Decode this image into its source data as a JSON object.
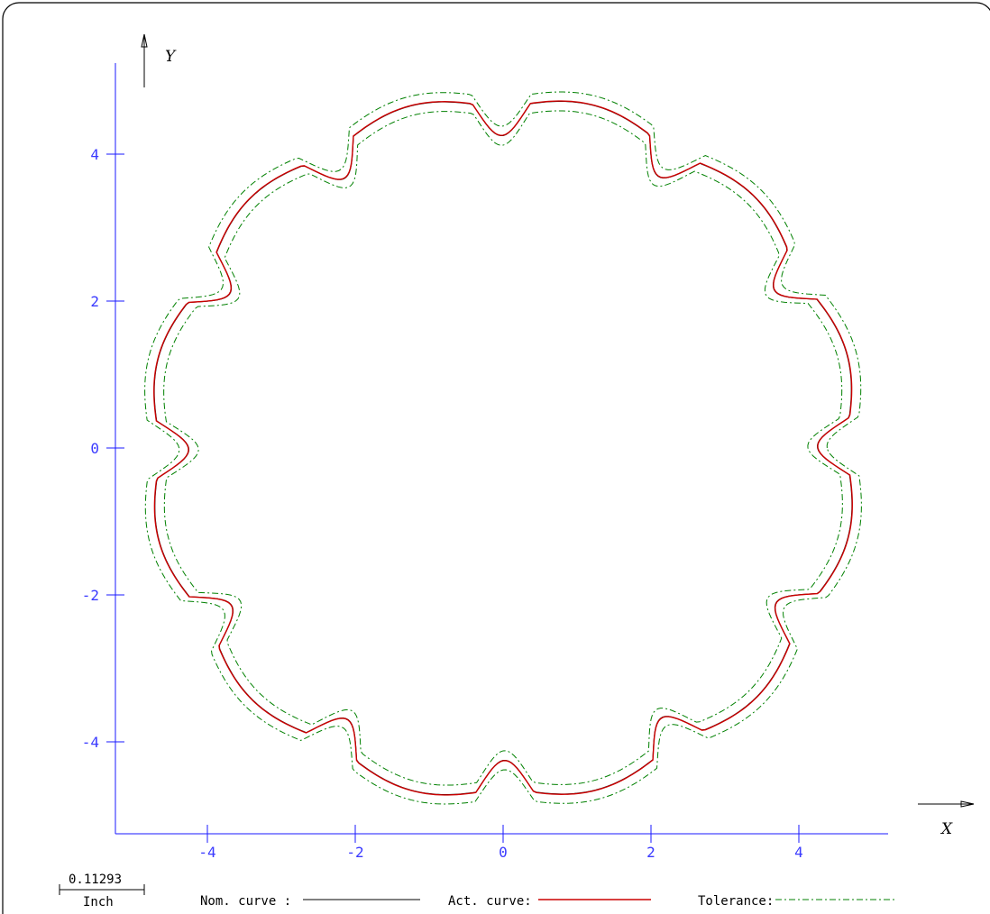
{
  "axes": {
    "x_name": "X",
    "y_name": "Y",
    "x_ticks": [
      {
        "value": -4,
        "label": "-4"
      },
      {
        "value": -2,
        "label": "-2"
      },
      {
        "value": 0,
        "label": "0"
      },
      {
        "value": 2,
        "label": "2"
      },
      {
        "value": 4,
        "label": "4"
      }
    ],
    "y_ticks": [
      {
        "value": 4,
        "label": "4"
      },
      {
        "value": 2,
        "label": "2"
      },
      {
        "value": 0,
        "label": "0"
      },
      {
        "value": -2,
        "label": "-2"
      },
      {
        "value": -4,
        "label": "-4"
      }
    ],
    "xlim": [
      -5.3,
      5.3
    ],
    "ylim": [
      -5.3,
      5.3
    ],
    "axis_color": "#1a1aff"
  },
  "curve": {
    "base_radius": 4.7,
    "notch_count": 12,
    "notch_depth": 0.45,
    "tolerance_offset": 0.13,
    "nominal_color": "#000000",
    "actual_color": "#cc0000",
    "tolerance_color": "#008000"
  },
  "scale_bar": {
    "value": "0.11293",
    "unit": "Inch"
  },
  "legend": {
    "nominal_label": "Nom. curve :",
    "actual_label": "Act. curve:",
    "tolerance_label": "Tolerance:"
  }
}
